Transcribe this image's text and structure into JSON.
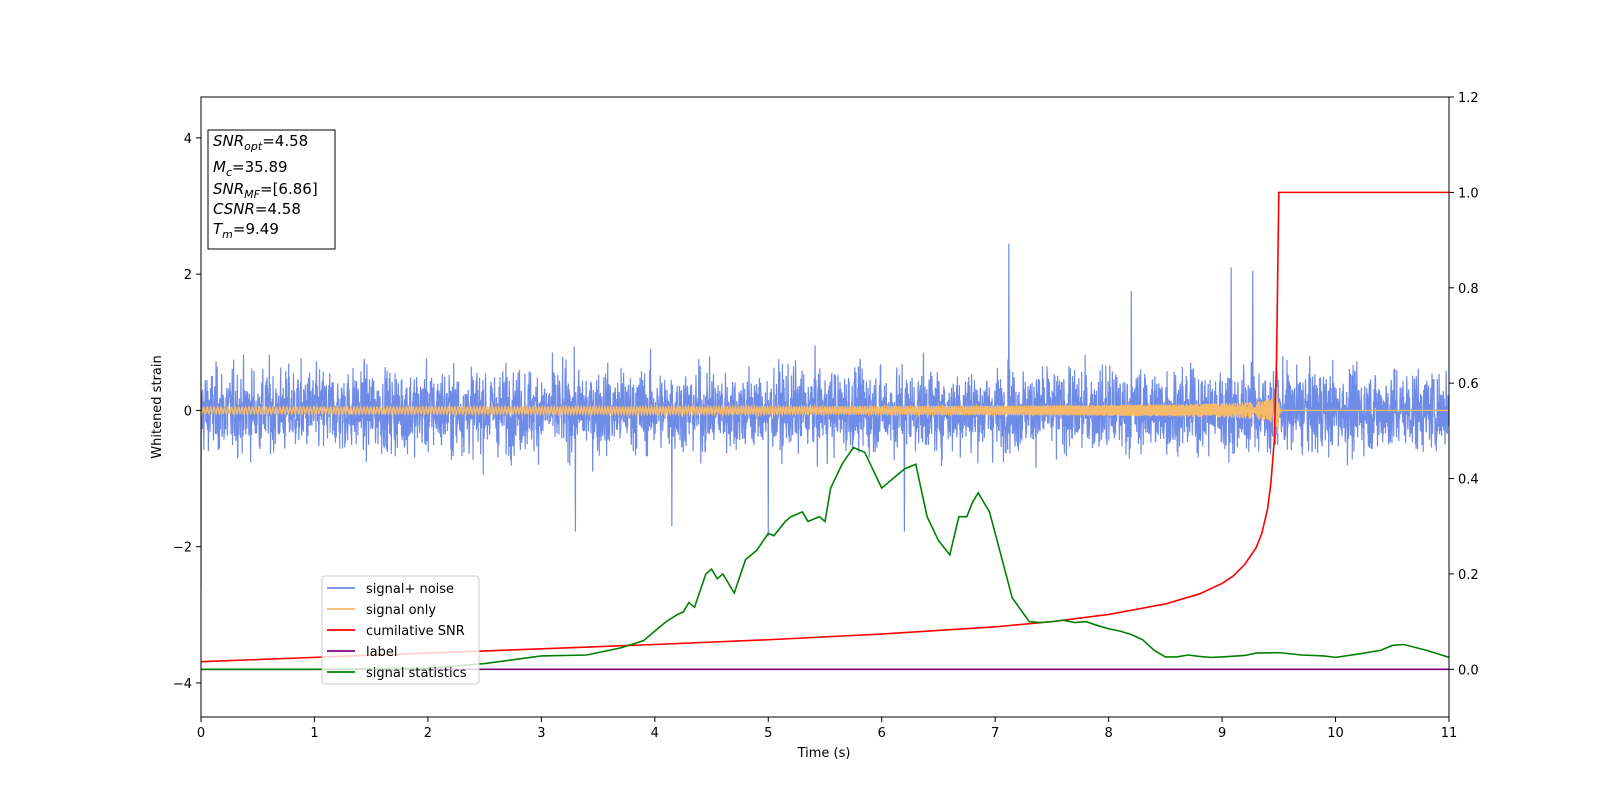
{
  "chart_data": {
    "type": "line",
    "xlabel": "Time (s)",
    "ylabel_left": "Whitened strain",
    "ylabel_right": "",
    "xlim": [
      0,
      11
    ],
    "ylim_left": [
      -4.5,
      4.6
    ],
    "ylim_right": [
      -0.1,
      1.2
    ],
    "x_ticks": [
      "0",
      "1",
      "2",
      "3",
      "4",
      "5",
      "6",
      "7",
      "8",
      "9",
      "10",
      "11"
    ],
    "y_left_ticks": [
      "−4",
      "−2",
      "0",
      "2",
      "4"
    ],
    "y_right_ticks": [
      "0.0",
      "0.2",
      "0.4",
      "0.6",
      "0.8",
      "1.0",
      "1.2"
    ],
    "grid": false,
    "legend_placement": "lower-left",
    "info_box": [
      {
        "base": "SNR",
        "sub": "opt",
        "value": "=4.58"
      },
      {
        "base": "M",
        "sub": "c",
        "value": "=35.89"
      },
      {
        "base": "SNR",
        "sub": "MF",
        "value": "=[6.86]"
      },
      {
        "base": "CSNR",
        "sub": "",
        "value": "=4.58"
      },
      {
        "base": "T",
        "sub": "m",
        "value": "=9.49"
      }
    ],
    "series": [
      {
        "name": "signal+ noise",
        "color": "#6f8be8",
        "axis": "left",
        "kind": "noise",
        "amplitude_typical": 1.0,
        "spikes": [
          [
            7.12,
            2.45
          ],
          [
            8.2,
            1.75
          ],
          [
            9.08,
            2.1
          ],
          [
            9.27,
            2.05
          ],
          [
            4.15,
            -1.7
          ],
          [
            3.3,
            -1.78
          ],
          [
            5.0,
            -1.85
          ],
          [
            6.2,
            -1.78
          ]
        ]
      },
      {
        "name": "signal only",
        "color": "#f5b96a",
        "axis": "left",
        "kind": "chirp",
        "merger_time": 9.49,
        "peak_amplitude": 0.35
      },
      {
        "name": "cumilative SNR",
        "color": "#ff0000",
        "axis": "right",
        "x": [
          0,
          1,
          2,
          3,
          4,
          5,
          6,
          7,
          7.5,
          8,
          8.5,
          8.8,
          9.0,
          9.1,
          9.2,
          9.3,
          9.35,
          9.4,
          9.43,
          9.46,
          9.48,
          9.5,
          11
        ],
        "y": [
          0.016,
          0.025,
          0.034,
          0.043,
          0.052,
          0.062,
          0.074,
          0.089,
          0.1,
          0.115,
          0.137,
          0.158,
          0.18,
          0.196,
          0.22,
          0.255,
          0.285,
          0.335,
          0.39,
          0.48,
          0.65,
          1.0,
          1.0
        ]
      },
      {
        "name": "label",
        "color": "#800080",
        "axis": "right",
        "x": [
          0,
          11
        ],
        "y": [
          0.0,
          0.0
        ]
      },
      {
        "name": "signal statistics",
        "color": "#008000",
        "axis": "right",
        "x": [
          0,
          1,
          2,
          2.5,
          3,
          3.4,
          3.7,
          3.9,
          4.0,
          4.1,
          4.2,
          4.25,
          4.3,
          4.35,
          4.45,
          4.5,
          4.55,
          4.6,
          4.7,
          4.8,
          4.9,
          5.0,
          5.05,
          5.15,
          5.2,
          5.3,
          5.35,
          5.45,
          5.5,
          5.55,
          5.65,
          5.75,
          5.85,
          6.0,
          6.1,
          6.2,
          6.3,
          6.4,
          6.5,
          6.6,
          6.68,
          6.75,
          6.8,
          6.85,
          6.95,
          7.05,
          7.15,
          7.3,
          7.4,
          7.5,
          7.6,
          7.7,
          7.8,
          7.9,
          8.0,
          8.1,
          8.2,
          8.3,
          8.4,
          8.5,
          8.6,
          8.7,
          8.8,
          8.9,
          9.0,
          9.2,
          9.3,
          9.5,
          9.7,
          9.9,
          10.0,
          10.2,
          10.4,
          10.5,
          10.6,
          10.8,
          11.0
        ],
        "y": [
          0.0,
          0.0,
          0.002,
          0.012,
          0.028,
          0.03,
          0.045,
          0.06,
          0.08,
          0.1,
          0.115,
          0.12,
          0.14,
          0.13,
          0.2,
          0.21,
          0.19,
          0.2,
          0.16,
          0.23,
          0.25,
          0.285,
          0.28,
          0.31,
          0.32,
          0.33,
          0.31,
          0.32,
          0.31,
          0.38,
          0.43,
          0.465,
          0.455,
          0.38,
          0.4,
          0.42,
          0.43,
          0.32,
          0.27,
          0.24,
          0.32,
          0.32,
          0.35,
          0.37,
          0.33,
          0.24,
          0.15,
          0.1,
          0.098,
          0.1,
          0.103,
          0.098,
          0.1,
          0.092,
          0.085,
          0.08,
          0.073,
          0.062,
          0.04,
          0.026,
          0.026,
          0.03,
          0.027,
          0.025,
          0.026,
          0.029,
          0.034,
          0.035,
          0.03,
          0.028,
          0.025,
          0.032,
          0.04,
          0.05,
          0.052,
          0.04,
          0.025
        ]
      }
    ]
  }
}
